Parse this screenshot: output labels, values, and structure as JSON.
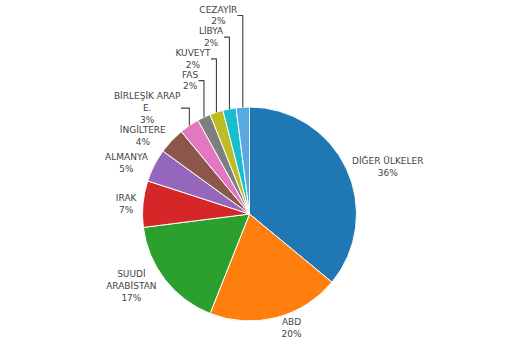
{
  "chart_data": {
    "type": "pie",
    "categories": [
      "DİĞER ÜLKELER",
      "ABD",
      "SUUDİ\nARABİSTAN",
      "IRAK",
      "ALMANYA",
      "İNGİLTERE",
      "BİRLEŞİK ARAP\nE.",
      "FAS",
      "KUVEYT",
      "LİBYA",
      "CEZAYİR"
    ],
    "values": [
      36,
      20,
      17,
      7,
      5,
      4,
      3,
      2,
      2,
      2,
      2
    ],
    "value_labels": [
      "36%",
      "20%",
      "17%",
      "7%",
      "5%",
      "4%",
      "3%",
      "2%",
      "2%",
      "2%",
      "2%"
    ],
    "data_labels": true
  }
}
